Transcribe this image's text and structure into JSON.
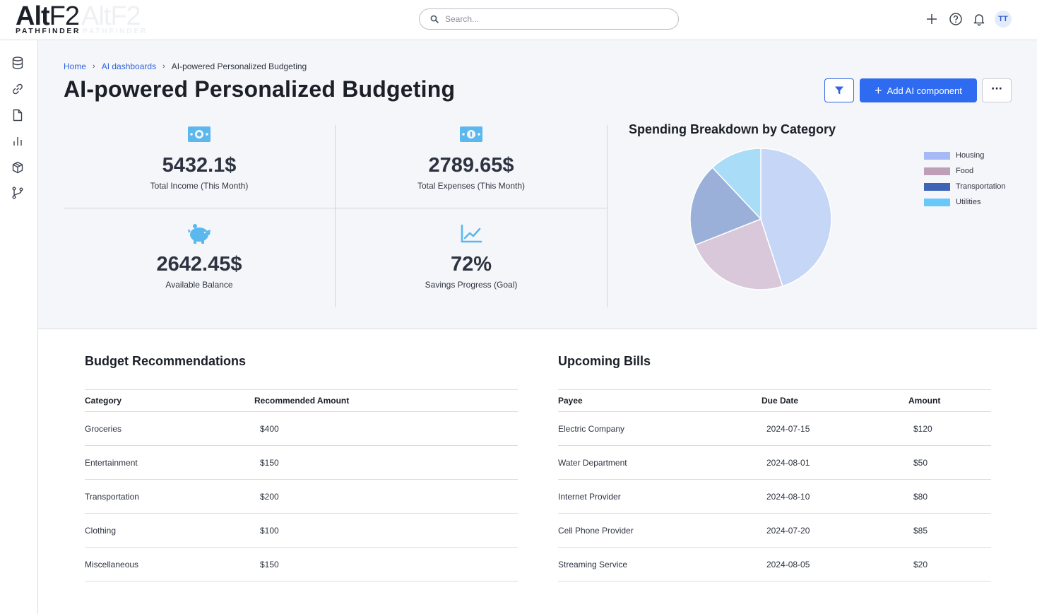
{
  "header": {
    "logo_main": "Alt",
    "logo_main2": "F2",
    "logo_sub": "PATHFINDER",
    "search_placeholder": "Search...",
    "icons": [
      "plus-icon",
      "help-icon",
      "bell-icon"
    ],
    "avatar_initials": "TT"
  },
  "sidebar": {
    "items": [
      "database-icon",
      "link-icon",
      "document-icon",
      "bar-chart-icon",
      "cube-icon",
      "git-branch-icon"
    ]
  },
  "breadcrumb": {
    "items": [
      "Home",
      "AI dashboards"
    ],
    "current": "AI-powered Personalized Budgeting"
  },
  "page": {
    "title": "AI-powered Personalized Budgeting",
    "add_button": "Add AI component",
    "more_button": "···"
  },
  "kpis": [
    {
      "icon": "money-icon",
      "value": "5432.1$",
      "label": "Total Income (This Month)"
    },
    {
      "icon": "money-icon",
      "value": "2789.65$",
      "label": "Total Expenses (This Month)"
    },
    {
      "icon": "piggy-bank-icon",
      "value": "2642.45$",
      "label": "Available Balance"
    },
    {
      "icon": "trend-line-icon",
      "value": "72%",
      "label": "Savings Progress (Goal)"
    }
  ],
  "chart_data": {
    "type": "pie",
    "title": "Spending Breakdown by Category",
    "categories": [
      "Housing",
      "Food",
      "Transportation",
      "Utilities"
    ],
    "values": [
      45,
      24,
      19,
      12
    ],
    "colors": [
      "#c6d6f6",
      "#d9c8da",
      "#9ab0d8",
      "#a9dcf6"
    ],
    "legend_colors": [
      "#a7baf6",
      "#bf9fb8",
      "#3e64b6",
      "#66c9f9"
    ],
    "legend_position": "right"
  },
  "budget": {
    "title": "Budget Recommendations",
    "columns": [
      "Category",
      "Recommended Amount"
    ],
    "rows": [
      [
        "Groceries",
        "$400"
      ],
      [
        "Entertainment",
        "$150"
      ],
      [
        "Transportation",
        "$200"
      ],
      [
        "Clothing",
        "$100"
      ],
      [
        "Miscellaneous",
        "$150"
      ]
    ]
  },
  "bills": {
    "title": "Upcoming Bills",
    "columns": [
      "Payee",
      "Due Date",
      "Amount"
    ],
    "rows": [
      [
        "Electric Company",
        "2024-07-15",
        "$120"
      ],
      [
        "Water Department",
        "2024-08-01",
        "$50"
      ],
      [
        "Internet Provider",
        "2024-08-10",
        "$80"
      ],
      [
        "Cell Phone Provider",
        "2024-07-20",
        "$85"
      ],
      [
        "Streaming Service",
        "2024-08-05",
        "$20"
      ]
    ]
  },
  "colors": {
    "accent": "#2f6bf0",
    "kpi_icon": "#5ab8ef"
  }
}
